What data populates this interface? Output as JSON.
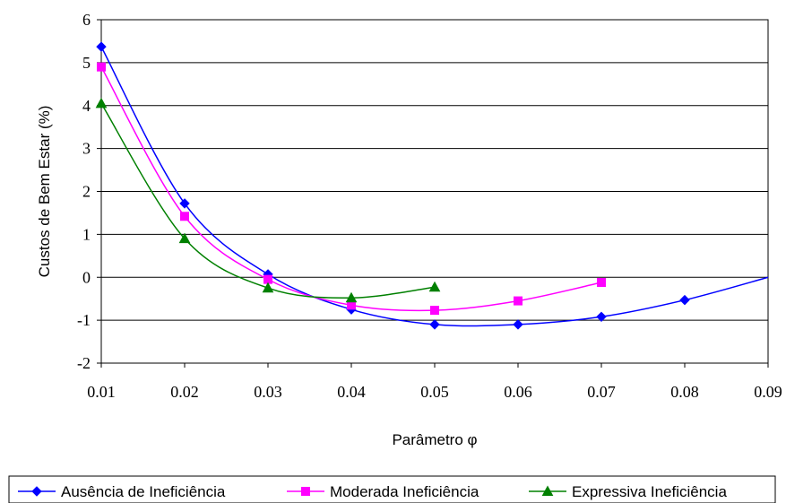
{
  "chart_data": {
    "type": "line",
    "xlabel": "Parâmetro φ",
    "ylabel": "Custos de Bem Estar  (%)",
    "xlim": [
      0.01,
      0.09
    ],
    "ylim": [
      -2,
      6
    ],
    "x_ticks": [
      "0.01",
      "0.02",
      "0.03",
      "0.04",
      "0.05",
      "0.06",
      "0.07",
      "0.08",
      "0.09"
    ],
    "y_ticks": [
      "6",
      "5",
      "4",
      "3",
      "2",
      "1",
      "0",
      "-1",
      "-2"
    ],
    "grid": "horizontal",
    "legend_position": "bottom",
    "series": [
      {
        "name": "Ausência de Ineficiência",
        "color": "#0000FF",
        "marker": "diamond",
        "x": [
          0.01,
          0.02,
          0.03,
          0.04,
          0.05,
          0.06,
          0.07,
          0.08,
          0.09
        ],
        "values": [
          5.37,
          1.72,
          0.07,
          -0.75,
          -1.1,
          -1.1,
          -0.92,
          -0.53,
          0.0
        ],
        "markers_shown": [
          true,
          true,
          true,
          true,
          true,
          true,
          true,
          true,
          false
        ]
      },
      {
        "name": "Moderada Ineficiência",
        "color": "#FF00FF",
        "marker": "square",
        "x": [
          0.01,
          0.02,
          0.03,
          0.04,
          0.05,
          0.06,
          0.07
        ],
        "values": [
          4.9,
          1.42,
          -0.05,
          -0.65,
          -0.77,
          -0.55,
          -0.12
        ],
        "markers_shown": [
          true,
          true,
          true,
          true,
          true,
          true,
          true
        ]
      },
      {
        "name": "Expressiva Ineficiência",
        "color": "#008000",
        "marker": "triangle",
        "x": [
          0.01,
          0.02,
          0.03,
          0.04,
          0.05
        ],
        "values": [
          4.05,
          0.9,
          -0.25,
          -0.48,
          -0.23
        ],
        "markers_shown": [
          true,
          true,
          true,
          true,
          true
        ]
      }
    ]
  }
}
